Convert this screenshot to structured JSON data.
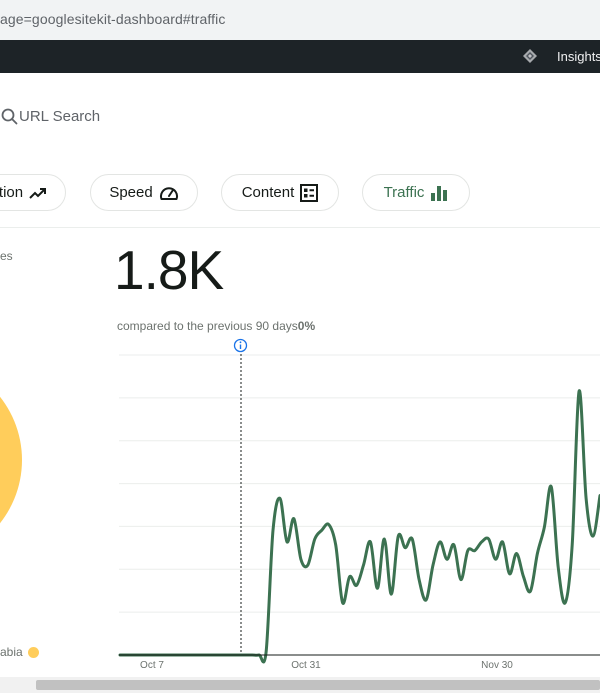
{
  "browser": {
    "url": "age=googlesitekit-dashboard#traffic"
  },
  "admin_bar": {
    "insights_label": "Insights"
  },
  "search": {
    "label": "URL Search"
  },
  "nav_chips": [
    {
      "label": "tion",
      "icon": "trending-up-icon"
    },
    {
      "label": "Speed",
      "icon": "speedometer-icon"
    },
    {
      "label": "Content",
      "icon": "content-list-icon"
    },
    {
      "label": "Traffic",
      "icon": "bar-chart-icon",
      "active": true
    }
  ],
  "left_panel": {
    "label": "es",
    "legend_label": "abia",
    "legend_color": "#ffcd5b",
    "pie_color": "#ffcd5b"
  },
  "metric": {
    "value": "1.8K",
    "compare_text": "compared to the previous 90 days",
    "change": "0%"
  },
  "chart_data": {
    "type": "line",
    "x_tick_labels": [
      "Oct 7",
      "Oct 31",
      "Nov 30"
    ],
    "series_color": "#3c7251",
    "gridlines": 7,
    "annotation_marker": "info-icon",
    "values": [
      0,
      0,
      0,
      0,
      0,
      0,
      0,
      0,
      0,
      0,
      0,
      0,
      0,
      0,
      0,
      0,
      0,
      0,
      0,
      0,
      0,
      1,
      43,
      54,
      39,
      47,
      33,
      31,
      40,
      43,
      45,
      38,
      18,
      27,
      24,
      31,
      39,
      23,
      40,
      21,
      41,
      37,
      40,
      26,
      19,
      31,
      39,
      33,
      38,
      26,
      36,
      36,
      39,
      40,
      33,
      39,
      28,
      35,
      27,
      22,
      35,
      44,
      58,
      30,
      18,
      38,
      91,
      54,
      41,
      55
    ]
  }
}
